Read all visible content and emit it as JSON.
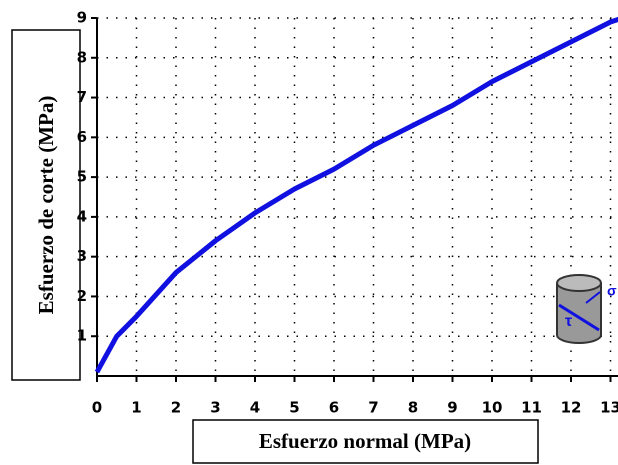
{
  "chart_data": {
    "type": "line",
    "xlabel": "Esfuerzo normal (MPa)",
    "ylabel": "Esfuerzo de corte (MPa)",
    "annotations": [
      "σ",
      "τ"
    ],
    "series": [
      {
        "color": "#1010e0",
        "x": [
          0,
          0.5,
          1,
          2,
          3,
          4,
          5,
          6,
          7,
          8,
          9,
          10,
          11,
          12,
          13,
          13.3
        ],
        "values": [
          0.1,
          1.0,
          1.5,
          2.6,
          3.4,
          4.1,
          4.7,
          5.2,
          5.8,
          6.3,
          6.8,
          7.4,
          7.9,
          8.4,
          8.9,
          9.0
        ]
      }
    ],
    "xlim": [
      0,
      13.3
    ],
    "ylim": [
      0,
      9
    ],
    "xticks": [
      0,
      1,
      2,
      3,
      4,
      5,
      6,
      7,
      8,
      9,
      10,
      11,
      12,
      13
    ],
    "yticks": [
      1,
      2,
      3,
      4,
      5,
      6,
      7,
      8,
      9
    ],
    "grid": true
  }
}
